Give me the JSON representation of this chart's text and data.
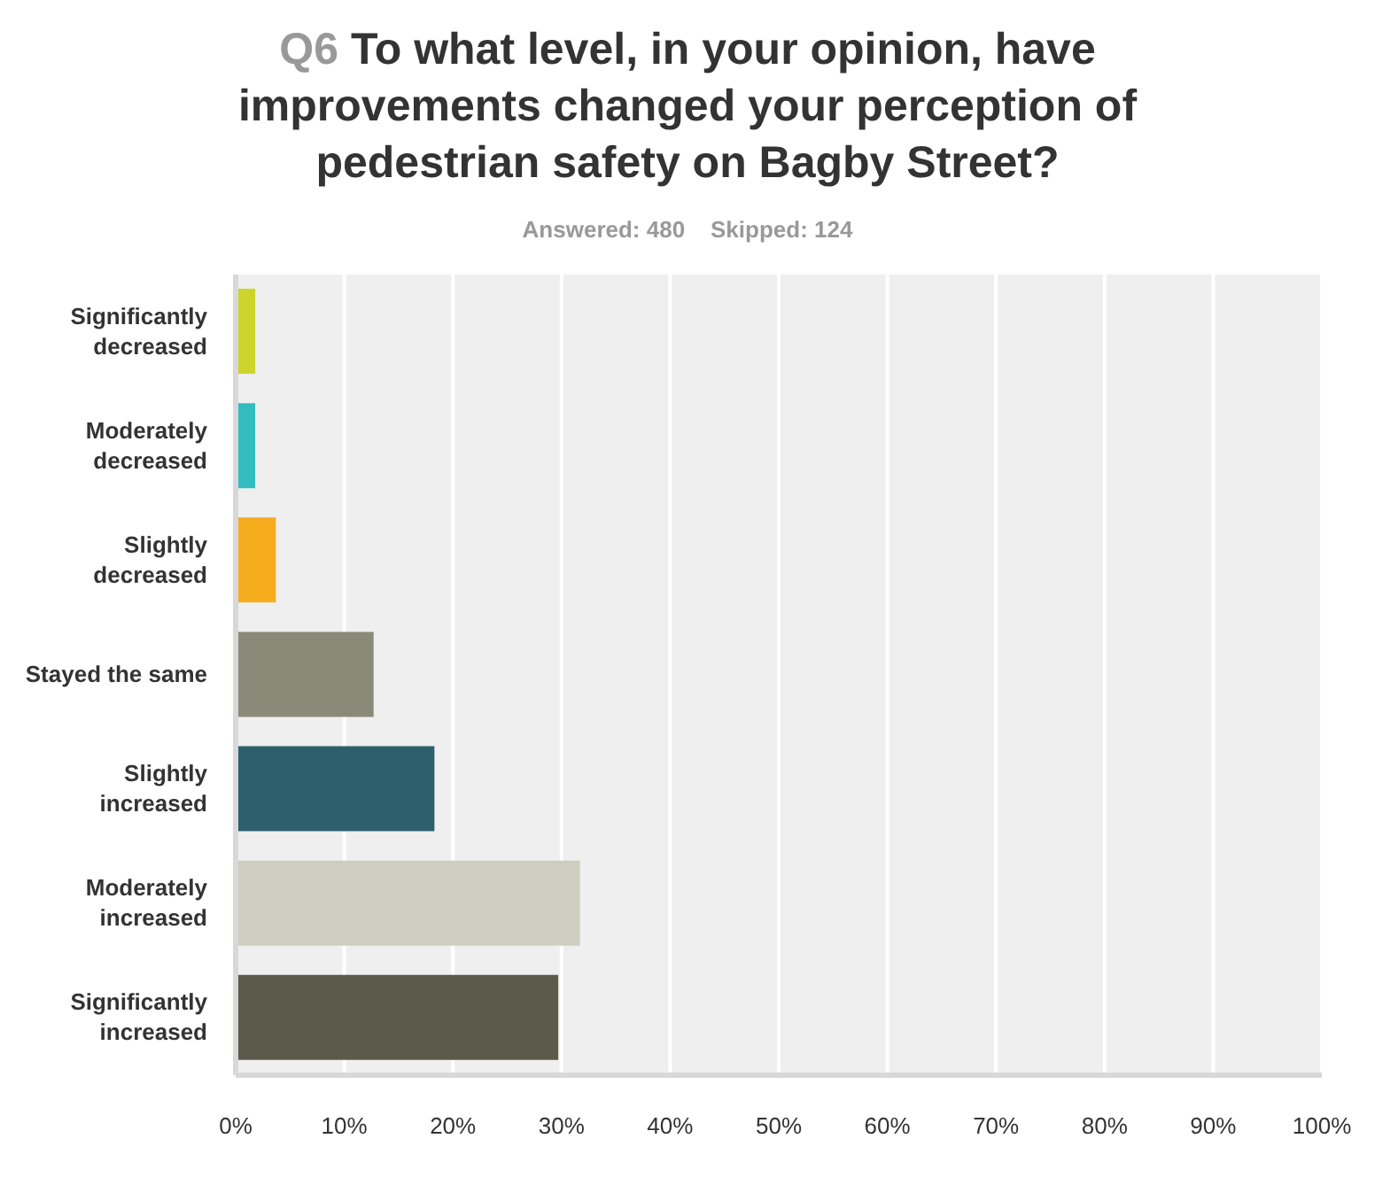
{
  "chart_data": {
    "type": "bar",
    "orientation": "horizontal",
    "title": "Q6 To what level, in your opinion, have improvements changed your perception of pedestrian safety on Bagby Street?",
    "subtitle": "Answered: 480    Skipped: 124",
    "categories": [
      "Significantly decreased",
      "Moderately decreased",
      "Slightly decreased",
      "Stayed the same",
      "Slightly increased",
      "Moderately increased",
      "Significantly increased"
    ],
    "values": [
      1.8,
      1.8,
      3.7,
      12.7,
      18.3,
      31.7,
      29.7
    ],
    "colors": [
      "#cdd52a",
      "#33bcc0",
      "#f5ad1e",
      "#8a8a78",
      "#2e5f6d",
      "#cfcdbf",
      "#5b5a4b"
    ],
    "xlim": [
      0,
      100
    ],
    "xticks": [
      {
        "value": 0,
        "label": "0%"
      },
      {
        "value": 10,
        "label": "10%"
      },
      {
        "value": 20,
        "label": "20%"
      },
      {
        "value": 30,
        "label": "30%"
      },
      {
        "value": 40,
        "label": "40%"
      },
      {
        "value": 50,
        "label": "50%"
      },
      {
        "value": 60,
        "label": "60%"
      },
      {
        "value": 70,
        "label": "70%"
      },
      {
        "value": 80,
        "label": "80%"
      },
      {
        "value": 90,
        "label": "90%"
      },
      {
        "value": 100,
        "label": "100%"
      }
    ],
    "grid": "x"
  }
}
